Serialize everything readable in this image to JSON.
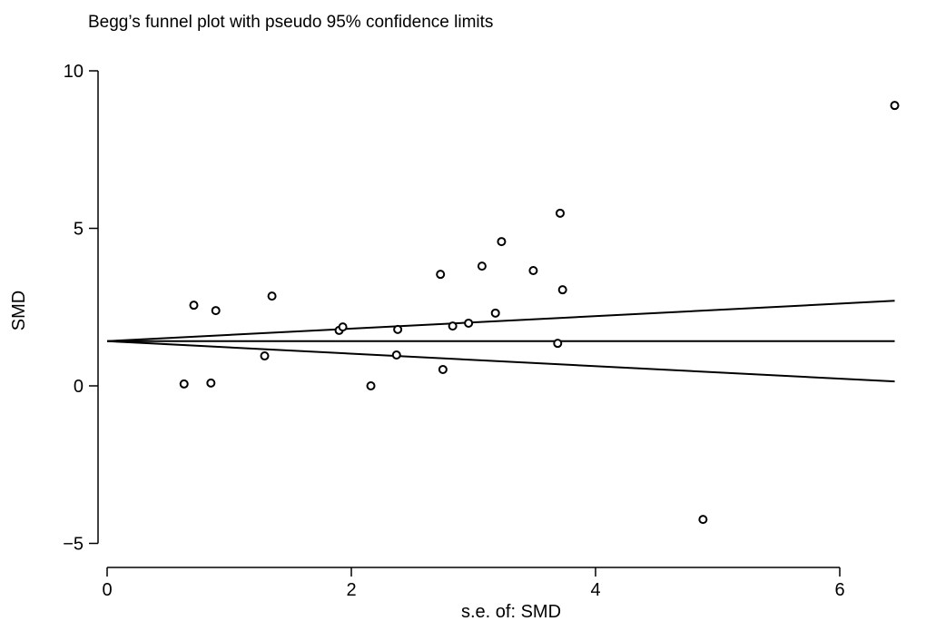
{
  "chart_data": {
    "type": "scatter",
    "title": "Begg’s funnel plot with pseudo 95% confidence limits",
    "xlabel": "s.e. of: SMD",
    "ylabel": "SMD",
    "xlim": [
      0,
      6.45
    ],
    "ylim": [
      -5,
      10
    ],
    "xticks": [
      0,
      2,
      4,
      6
    ],
    "yticks": [
      -5,
      0,
      5,
      10
    ],
    "xtick_labels": [
      "0",
      "2",
      "4",
      "6"
    ],
    "ytick_labels": [
      "−5",
      "0",
      "5",
      "10"
    ],
    "grid": false,
    "marker": "hollow-circle",
    "points": [
      {
        "x": 0.63,
        "y": 0.06
      },
      {
        "x": 0.71,
        "y": 2.56
      },
      {
        "x": 0.85,
        "y": 0.09
      },
      {
        "x": 0.89,
        "y": 2.39
      },
      {
        "x": 1.29,
        "y": 0.95
      },
      {
        "x": 1.35,
        "y": 2.85
      },
      {
        "x": 1.9,
        "y": 1.76
      },
      {
        "x": 1.93,
        "y": 1.87
      },
      {
        "x": 2.16,
        "y": 0.0
      },
      {
        "x": 2.37,
        "y": 0.98
      },
      {
        "x": 2.38,
        "y": 1.79
      },
      {
        "x": 2.73,
        "y": 3.54
      },
      {
        "x": 2.75,
        "y": 0.52
      },
      {
        "x": 2.83,
        "y": 1.9
      },
      {
        "x": 2.96,
        "y": 1.99
      },
      {
        "x": 3.07,
        "y": 3.8
      },
      {
        "x": 3.18,
        "y": 2.31
      },
      {
        "x": 3.23,
        "y": 4.58
      },
      {
        "x": 3.49,
        "y": 3.66
      },
      {
        "x": 3.69,
        "y": 1.35
      },
      {
        "x": 3.71,
        "y": 5.48
      },
      {
        "x": 3.73,
        "y": 3.05
      },
      {
        "x": 4.88,
        "y": -4.24
      },
      {
        "x": 6.45,
        "y": 8.9
      }
    ],
    "lines": [
      {
        "name": "pooled",
        "x": [
          0,
          6.45
        ],
        "y": [
          1.42,
          1.42
        ]
      },
      {
        "name": "upper-limit",
        "x": [
          0,
          6.45
        ],
        "y": [
          1.42,
          2.7
        ]
      },
      {
        "name": "lower-limit",
        "x": [
          0,
          6.45
        ],
        "y": [
          1.42,
          0.14
        ]
      }
    ]
  }
}
